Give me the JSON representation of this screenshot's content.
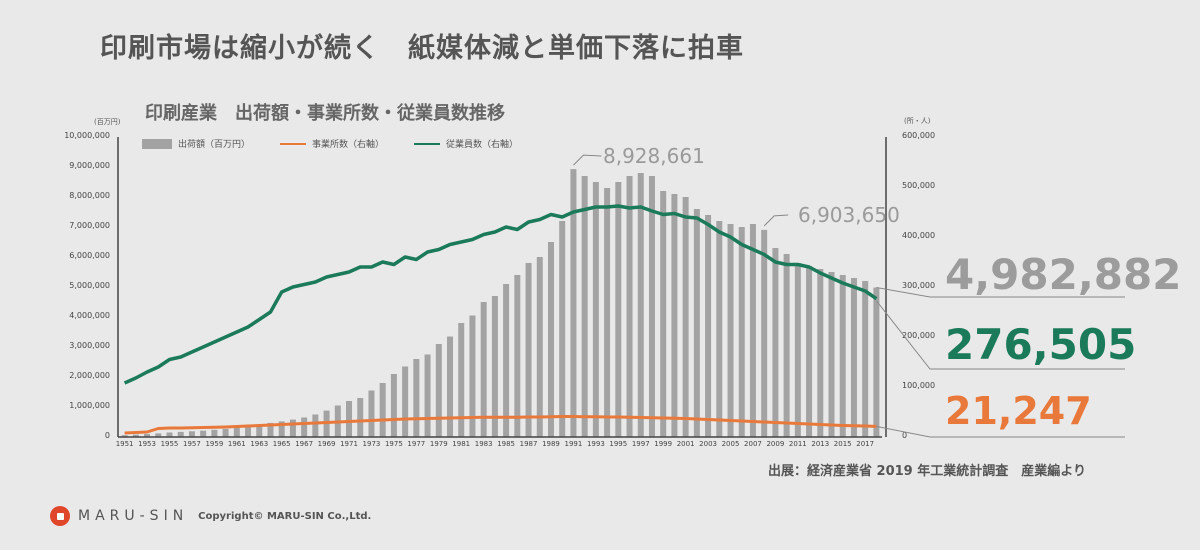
{
  "headline": "印刷市場は縮小が続く　紙媒体減と単価下落に拍車",
  "chart_title": "印刷産業　出荷額・事業所数・従業員数推移",
  "colors": {
    "bar": "#a3a3a3",
    "establishments": "#e8793a",
    "employees": "#1b7a5a",
    "callout_gray": "#9a9a9a"
  },
  "chart_data": {
    "type": "bar",
    "title": "印刷産業　出荷額・事業所数・従業員数推移",
    "ylabel_left": "(百万円)",
    "ylabel_right": "(所・人)",
    "ylim_left": [
      0,
      10000000
    ],
    "ylim_right": [
      0,
      600000
    ],
    "yticks_left": [
      "10,000,000",
      "9,000,000",
      "8,000,000",
      "7,000,000",
      "6,000,000",
      "5,000,000",
      "4,000,000",
      "3,000,000",
      "2,000,000",
      "1,000,000",
      "0"
    ],
    "yticks_right": [
      "600,000",
      "500,000",
      "400,000",
      "300,000",
      "200,000",
      "100,000",
      "0"
    ],
    "xtick_labels": [
      "1951",
      "1953",
      "1955",
      "1957",
      "1959",
      "1961",
      "1963",
      "1965",
      "1967",
      "1969",
      "1971",
      "1973",
      "1975",
      "1977",
      "1979",
      "1981",
      "1983",
      "1985",
      "1987",
      "1989",
      "1991",
      "1993",
      "1995",
      "1997",
      "1999",
      "2001",
      "2003",
      "2005",
      "2007",
      "2009",
      "2011",
      "2013",
      "2015",
      "2017"
    ],
    "legend": [
      "出荷額（百万円）",
      "事業所数（右軸）",
      "従業員数（右軸）"
    ],
    "x": [
      1951,
      1952,
      1953,
      1954,
      1955,
      1956,
      1957,
      1958,
      1959,
      1960,
      1961,
      1962,
      1963,
      1964,
      1965,
      1966,
      1967,
      1968,
      1969,
      1970,
      1971,
      1972,
      1973,
      1974,
      1975,
      1976,
      1977,
      1978,
      1979,
      1980,
      1981,
      1982,
      1983,
      1984,
      1985,
      1986,
      1987,
      1988,
      1989,
      1990,
      1991,
      1992,
      1993,
      1994,
      1995,
      1996,
      1997,
      1998,
      1999,
      2000,
      2001,
      2002,
      2003,
      2004,
      2005,
      2006,
      2007,
      2008,
      2009,
      2010,
      2011,
      2012,
      2013,
      2014,
      2015,
      2016,
      2017,
      2018
    ],
    "series": [
      {
        "name": "出荷額（百万円）",
        "axis": "left",
        "type": "bar",
        "values": [
          60000,
          80000,
          100000,
          120000,
          150000,
          170000,
          190000,
          210000,
          240000,
          270000,
          320000,
          370000,
          420000,
          470000,
          520000,
          580000,
          650000,
          750000,
          880000,
          1050000,
          1200000,
          1300000,
          1550000,
          1800000,
          2100000,
          2350000,
          2600000,
          2750000,
          3100000,
          3350000,
          3800000,
          4050000,
          4500000,
          4700000,
          5100000,
          5400000,
          5800000,
          6000000,
          6500000,
          7200000,
          8928661,
          8700000,
          8500000,
          8300000,
          8500000,
          8700000,
          8800000,
          8700000,
          8200000,
          8100000,
          8000000,
          7600000,
          7400000,
          7200000,
          7100000,
          7000000,
          7100000,
          6903650,
          6300000,
          6100000,
          5800000,
          5700000,
          5600000,
          5500000,
          5400000,
          5300000,
          5200000,
          4982882
        ]
      },
      {
        "name": "事業所数（右軸）",
        "axis": "right",
        "type": "line",
        "values": [
          8000,
          9000,
          10000,
          17000,
          18000,
          18000,
          18500,
          19000,
          19500,
          20000,
          21000,
          22000,
          23000,
          24000,
          25000,
          26000,
          27000,
          28000,
          29000,
          30000,
          31000,
          32000,
          33000,
          34000,
          35000,
          36000,
          36500,
          37000,
          37500,
          38000,
          38500,
          39000,
          39500,
          39500,
          39500,
          39500,
          40000,
          40000,
          40500,
          41000,
          41000,
          40500,
          40500,
          40000,
          40000,
          39500,
          39000,
          38500,
          38000,
          37500,
          37000,
          36000,
          35000,
          34000,
          33000,
          32000,
          31000,
          30000,
          29000,
          28000,
          27000,
          26000,
          25000,
          24000,
          23000,
          22500,
          22000,
          21247
        ]
      },
      {
        "name": "従業員数（右軸）",
        "axis": "right",
        "type": "line",
        "values": [
          108000,
          118000,
          130000,
          140000,
          155000,
          160000,
          170000,
          180000,
          190000,
          200000,
          210000,
          220000,
          235000,
          250000,
          290000,
          300000,
          305000,
          310000,
          320000,
          325000,
          330000,
          340000,
          340000,
          350000,
          345000,
          360000,
          355000,
          370000,
          375000,
          385000,
          390000,
          395000,
          405000,
          410000,
          420000,
          415000,
          430000,
          435000,
          445000,
          440000,
          450000,
          455000,
          460000,
          460000,
          462000,
          458000,
          460000,
          452000,
          445000,
          447000,
          440000,
          438000,
          425000,
          410000,
          400000,
          385000,
          375000,
          365000,
          350000,
          345000,
          345000,
          340000,
          328000,
          318000,
          308000,
          300000,
          292000,
          276505
        ]
      }
    ],
    "annotations": [
      "8,928,661",
      "6,903,650"
    ],
    "latest_values": {
      "shipments": "4,982,882",
      "employees": "276,505",
      "establishments": "21,247"
    },
    "grid": false,
    "legend_position": "top-left"
  },
  "callouts": {
    "peak": "8,928,661",
    "y2008": "6,903,650"
  },
  "latest": {
    "shipments": "4,982,882",
    "employees": "276,505",
    "establishments": "21,247"
  },
  "source": "出展：経済産業省 2019 年工業統計調査　産業編より",
  "footer": {
    "brand": "MARU-SIN",
    "copyright": "Copyright© MARU-SIN Co.,Ltd."
  }
}
